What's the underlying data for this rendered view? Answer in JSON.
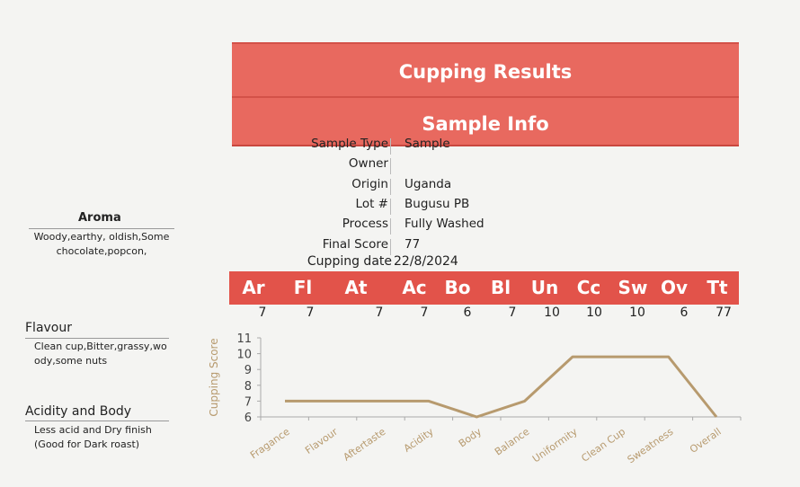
{
  "title": "Cupping Results",
  "sample_info_title": "Sample Info",
  "sample_info": [
    {
      "label": "Sample Type",
      "value": "Sample"
    },
    {
      "label": "Owner",
      "value": ""
    },
    {
      "label": "Origin",
      "value": "Uganda"
    },
    {
      "label": "Lot #",
      "value": "Bugusu PB"
    },
    {
      "label": "Process",
      "value": "Fully Washed"
    },
    {
      "label": "Final Score",
      "value": "77"
    }
  ],
  "cupping_date": {
    "label": "Cupping date",
    "value": "22/8/2024"
  },
  "scores": [
    {
      "abbr": "Ar",
      "value": "7"
    },
    {
      "abbr": "Fl",
      "value": "7"
    },
    {
      "abbr": "At",
      "value": "7"
    },
    {
      "abbr": "Ac",
      "value": "7"
    },
    {
      "abbr": "Bo",
      "value": "6"
    },
    {
      "abbr": "Bl",
      "value": "7"
    },
    {
      "abbr": "Un",
      "value": "10"
    },
    {
      "abbr": "Cc",
      "value": "10"
    },
    {
      "abbr": "Sw",
      "value": "10"
    },
    {
      "abbr": "Ov",
      "value": "6"
    },
    {
      "abbr": "Tt",
      "value": "77"
    }
  ],
  "notes": {
    "aroma": {
      "heading": "Aroma",
      "text": "Woody,earthy, oldish,Some chocolate,popcon,"
    },
    "flavour": {
      "heading": "Flavour",
      "text": "Clean cup,Bitter,grassy,woody,some nuts"
    },
    "acidity_body": {
      "heading": "Acidity and Body",
      "text": "Less acid and Dry finish (Good for Dark roast)"
    }
  },
  "chart_data": {
    "type": "line",
    "categories": [
      "Fragance",
      "Flavour",
      "Aftertaste",
      "Acidity",
      "Body",
      "Balance",
      "Uniformity",
      "Clean Cup",
      "Sweatness",
      "Overall"
    ],
    "series": [
      {
        "values": [
          7,
          7,
          7,
          7,
          6,
          7,
          9.8,
          9.8,
          9.8,
          6
        ]
      }
    ],
    "ylabel": "Cupping Score",
    "ylim": [
      6,
      11
    ],
    "yticks": [
      6,
      7,
      8,
      9,
      10,
      11
    ],
    "line_color": "#b79a6e",
    "grid": false
  }
}
